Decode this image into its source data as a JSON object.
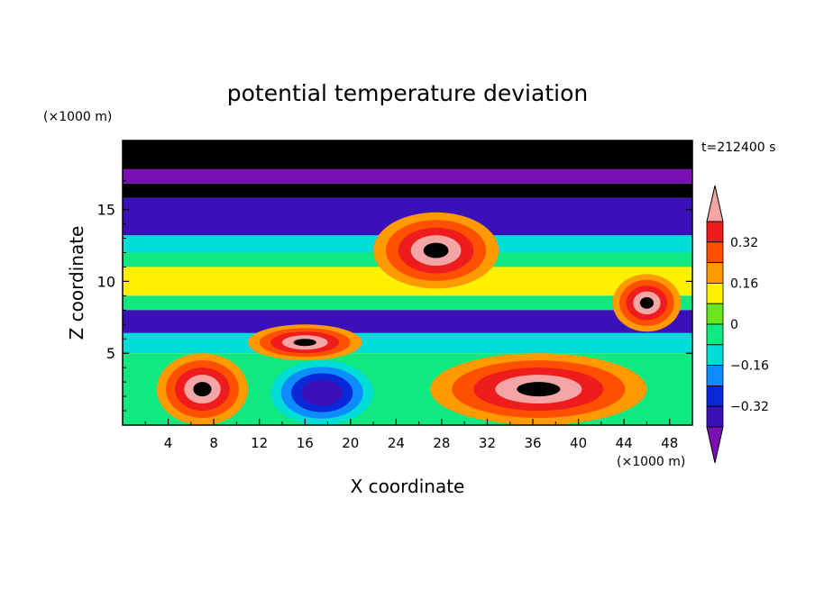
{
  "chart_data": {
    "type": "heatmap",
    "title": "potential temperature deviation",
    "xlabel": "X coordinate",
    "ylabel": "Z coordinate",
    "x_units": "(×1000 m)",
    "y_units": "(×1000 m)",
    "time_label": "t=212400 s",
    "xlim": [
      0,
      50
    ],
    "ylim": [
      0,
      19.8
    ],
    "x_ticks": [
      "4",
      "8",
      "12",
      "16",
      "20",
      "24",
      "28",
      "32",
      "36",
      "40",
      "44",
      "48"
    ],
    "y_ticks": [
      "5",
      "10",
      "15"
    ],
    "colorbar": {
      "levels": [
        -0.48,
        -0.4,
        -0.32,
        -0.24,
        -0.16,
        -0.08,
        0,
        0.08,
        0.16,
        0.24,
        0.32,
        0.4
      ],
      "tick_labels": [
        "0.32",
        "0.16",
        "0",
        "−0.16",
        "−0.32"
      ],
      "colors": [
        "#7a0fb4",
        "#3a10b8",
        "#0a28d8",
        "#0c8cff",
        "#00dcd6",
        "#12e880",
        "#6ae61c",
        "#fff000",
        "#ff9a00",
        "#ff5000",
        "#ee1c1c",
        "#f4a6a6"
      ]
    },
    "field_bands": [
      {
        "z_range": [
          17.8,
          19.8
        ],
        "value": 0.45
      },
      {
        "z_range": [
          16.8,
          17.8
        ],
        "value": -0.5
      },
      {
        "z_range": [
          15.8,
          16.8
        ],
        "value": 0.45
      },
      {
        "z_range": [
          13.2,
          15.8
        ],
        "value": -0.44
      },
      {
        "z_range": [
          12.0,
          13.2
        ],
        "value": -0.22
      },
      {
        "z_range": [
          11.0,
          12.0
        ],
        "value": -0.1
      },
      {
        "z_range": [
          9.0,
          11.0
        ],
        "value": 0.02
      },
      {
        "z_range": [
          8.0,
          9.0
        ],
        "value": -0.16
      },
      {
        "z_range": [
          6.4,
          8.0
        ],
        "value": -0.44
      },
      {
        "z_range": [
          5.0,
          6.4
        ],
        "value": -0.22
      },
      {
        "z_range": [
          0,
          5.0
        ],
        "value": -0.12
      }
    ],
    "features": [
      {
        "kind": "warm_patch",
        "x_range": [
          3,
          11
        ],
        "z_range": [
          0,
          5
        ],
        "peak_value": 0.45
      },
      {
        "kind": "warm_patch",
        "x_range": [
          27,
          46
        ],
        "z_range": [
          0,
          5
        ],
        "peak_value": 0.45
      },
      {
        "kind": "cold_vortex",
        "x_range": [
          13,
          22
        ],
        "z_range": [
          0,
          4.5
        ],
        "peak_value": -0.48
      },
      {
        "kind": "warm_blob",
        "x_range": [
          22,
          33
        ],
        "z_range": [
          9.5,
          14.8
        ],
        "peak_value": 0.45
      },
      {
        "kind": "warm_blob",
        "x_range": [
          11,
          21
        ],
        "z_range": [
          4.5,
          7
        ],
        "peak_value": 0.45
      },
      {
        "kind": "warm_blob",
        "x_range": [
          43,
          49
        ],
        "z_range": [
          6.5,
          10.5
        ],
        "peak_value": 0.45
      }
    ]
  }
}
